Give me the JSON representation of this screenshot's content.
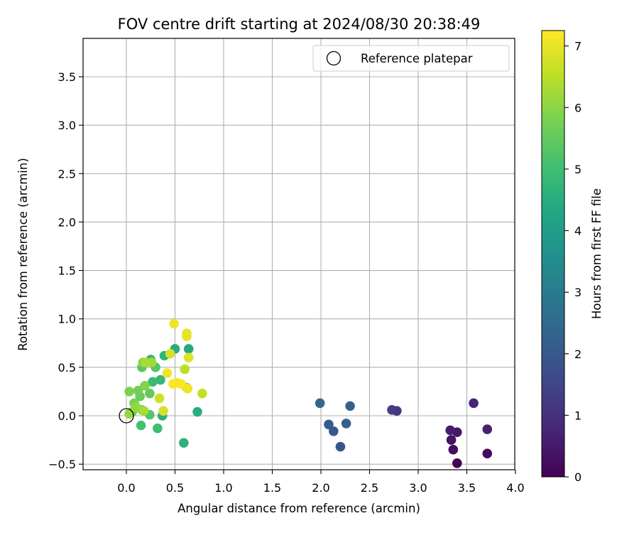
{
  "chart_data": {
    "type": "scatter",
    "title": "FOV centre drift starting at 2024/08/30 20:38:49",
    "xlabel": "Angular distance from reference (arcmin)",
    "ylabel": "Rotation from reference (arcmin)",
    "xlim": [
      -0.45,
      4.0
    ],
    "ylim": [
      -0.56,
      3.89
    ],
    "xticks": [
      0.0,
      0.5,
      1.0,
      1.5,
      2.0,
      2.5,
      3.0,
      3.5,
      4.0
    ],
    "yticks": [
      -0.5,
      0.0,
      0.5,
      1.0,
      1.5,
      2.0,
      2.5,
      3.0,
      3.5
    ],
    "xtick_labels": [
      "0.0",
      "0.5",
      "1.0",
      "1.5",
      "2.0",
      "2.5",
      "3.0",
      "3.5",
      "4.0"
    ],
    "ytick_labels": [
      "−0.5",
      "0.0",
      "0.5",
      "1.0",
      "1.5",
      "2.0",
      "2.5",
      "3.0",
      "3.5"
    ],
    "grid": true,
    "legend": {
      "placement": "top-right",
      "label": "Reference platepar"
    },
    "reference_point": {
      "x": 0.0,
      "y": 0.0
    },
    "colorbar": {
      "label": "Hours from first FF file",
      "range": [
        0,
        7.25
      ],
      "ticks": [
        0,
        1,
        2,
        3,
        4,
        5,
        6,
        7
      ],
      "tick_labels": [
        "0",
        "1",
        "2",
        "3",
        "4",
        "5",
        "6",
        "7"
      ],
      "colormap": "viridis"
    },
    "points": [
      {
        "x": 3.4,
        "y": -0.49,
        "c": 0.05
      },
      {
        "x": 3.71,
        "y": -0.39,
        "c": 0.15
      },
      {
        "x": 3.36,
        "y": -0.35,
        "c": 0.25
      },
      {
        "x": 3.34,
        "y": -0.25,
        "c": 0.35
      },
      {
        "x": 3.4,
        "y": -0.17,
        "c": 0.45
      },
      {
        "x": 3.33,
        "y": -0.15,
        "c": 0.55
      },
      {
        "x": 3.71,
        "y": -0.14,
        "c": 0.65
      },
      {
        "x": 3.57,
        "y": 0.13,
        "c": 0.75
      },
      {
        "x": 2.78,
        "y": 0.05,
        "c": 1.15
      },
      {
        "x": 2.73,
        "y": 0.06,
        "c": 1.3
      },
      {
        "x": 2.2,
        "y": -0.32,
        "c": 1.9
      },
      {
        "x": 2.13,
        "y": -0.16,
        "c": 2.0
      },
      {
        "x": 2.08,
        "y": -0.09,
        "c": 2.1
      },
      {
        "x": 2.26,
        "y": -0.08,
        "c": 2.2
      },
      {
        "x": 2.3,
        "y": 0.1,
        "c": 2.3
      },
      {
        "x": 1.99,
        "y": 0.13,
        "c": 2.4
      },
      {
        "x": 0.64,
        "y": 0.69,
        "c": 4.4
      },
      {
        "x": 0.5,
        "y": 0.69,
        "c": 4.5
      },
      {
        "x": 0.73,
        "y": 0.04,
        "c": 4.5
      },
      {
        "x": 0.59,
        "y": -0.28,
        "c": 4.6
      },
      {
        "x": 0.37,
        "y": -0.0,
        "c": 4.6
      },
      {
        "x": 0.39,
        "y": 0.62,
        "c": 4.7
      },
      {
        "x": 0.25,
        "y": 0.58,
        "c": 4.8
      },
      {
        "x": 0.35,
        "y": 0.37,
        "c": 4.8
      },
      {
        "x": 0.27,
        "y": 0.35,
        "c": 4.9
      },
      {
        "x": 0.32,
        "y": -0.13,
        "c": 5.0
      },
      {
        "x": 0.15,
        "y": -0.1,
        "c": 5.1
      },
      {
        "x": 0.24,
        "y": 0.01,
        "c": 5.3
      },
      {
        "x": 0.3,
        "y": 0.5,
        "c": 5.3
      },
      {
        "x": 0.16,
        "y": 0.5,
        "c": 5.4
      },
      {
        "x": 0.24,
        "y": 0.23,
        "c": 5.5
      },
      {
        "x": 0.06,
        "y": 0.04,
        "c": 5.6
      },
      {
        "x": 0.14,
        "y": 0.2,
        "c": 5.6
      },
      {
        "x": 0.16,
        "y": 0.06,
        "c": 5.7
      },
      {
        "x": 0.12,
        "y": 0.26,
        "c": 5.7
      },
      {
        "x": 0.08,
        "y": 0.13,
        "c": 5.8
      },
      {
        "x": 0.03,
        "y": 0.25,
        "c": 5.8
      },
      {
        "x": 0.19,
        "y": 0.31,
        "c": 5.9
      },
      {
        "x": 0.17,
        "y": 0.55,
        "c": 6.0
      },
      {
        "x": 0.62,
        "y": 0.29,
        "c": 6.0
      },
      {
        "x": 0.03,
        "y": 0.02,
        "c": 6.1
      },
      {
        "x": 0.1,
        "y": 0.09,
        "c": 6.1
      },
      {
        "x": 0.26,
        "y": 0.55,
        "c": 6.2
      },
      {
        "x": 0.2,
        "y": 0.55,
        "c": 6.3
      },
      {
        "x": 0.18,
        "y": 0.05,
        "c": 6.3
      },
      {
        "x": 0.6,
        "y": 0.48,
        "c": 6.5
      },
      {
        "x": 0.78,
        "y": 0.23,
        "c": 6.6
      },
      {
        "x": 0.34,
        "y": 0.18,
        "c": 6.7
      },
      {
        "x": 0.45,
        "y": 0.64,
        "c": 6.8
      },
      {
        "x": 0.38,
        "y": 0.05,
        "c": 6.8
      },
      {
        "x": 0.64,
        "y": 0.6,
        "c": 6.9
      },
      {
        "x": 0.62,
        "y": 0.82,
        "c": 7.0
      },
      {
        "x": 0.62,
        "y": 0.85,
        "c": 7.0
      },
      {
        "x": 0.49,
        "y": 0.95,
        "c": 7.1
      },
      {
        "x": 0.42,
        "y": 0.44,
        "c": 7.1
      },
      {
        "x": 0.63,
        "y": 0.28,
        "c": 7.1
      },
      {
        "x": 0.48,
        "y": 0.33,
        "c": 7.2
      },
      {
        "x": 0.52,
        "y": 0.34,
        "c": 7.2
      },
      {
        "x": 0.56,
        "y": 0.33,
        "c": 7.2
      }
    ]
  }
}
